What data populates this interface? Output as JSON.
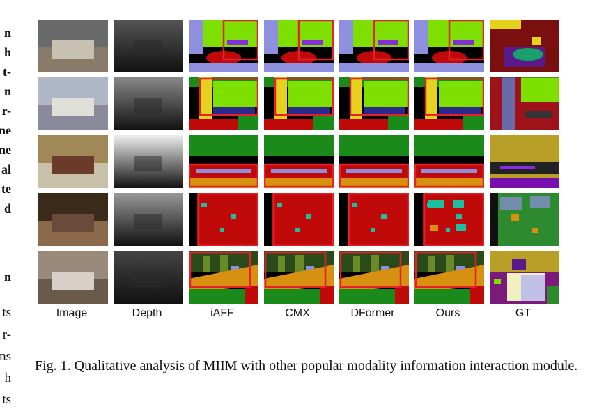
{
  "left_fragments": {
    "bold": [
      "n",
      "h",
      "t-",
      "n",
      "r-",
      "ne",
      "ne",
      "al",
      "te",
      "d"
    ],
    "heading": "n",
    "regular": [
      "ts",
      "r-",
      "ns",
      "h",
      "ts"
    ]
  },
  "figure": {
    "columns": [
      "Image",
      "Depth",
      "iAFF",
      "CMX",
      "DFormer",
      "Ours",
      "GT"
    ],
    "rows": 5
  },
  "caption": {
    "text": "Fig. 1.  Qualitative analysis of MIIM with other popular modality information interaction module."
  },
  "colors": {
    "highlight_box": "#e8202a",
    "green_bright": "#7ee000",
    "green_dark": "#1a8a1a",
    "red_floor": "#c00a0a",
    "lavender": "#8f8fe0",
    "yellow": "#e6d21e",
    "orange": "#d89010"
  }
}
